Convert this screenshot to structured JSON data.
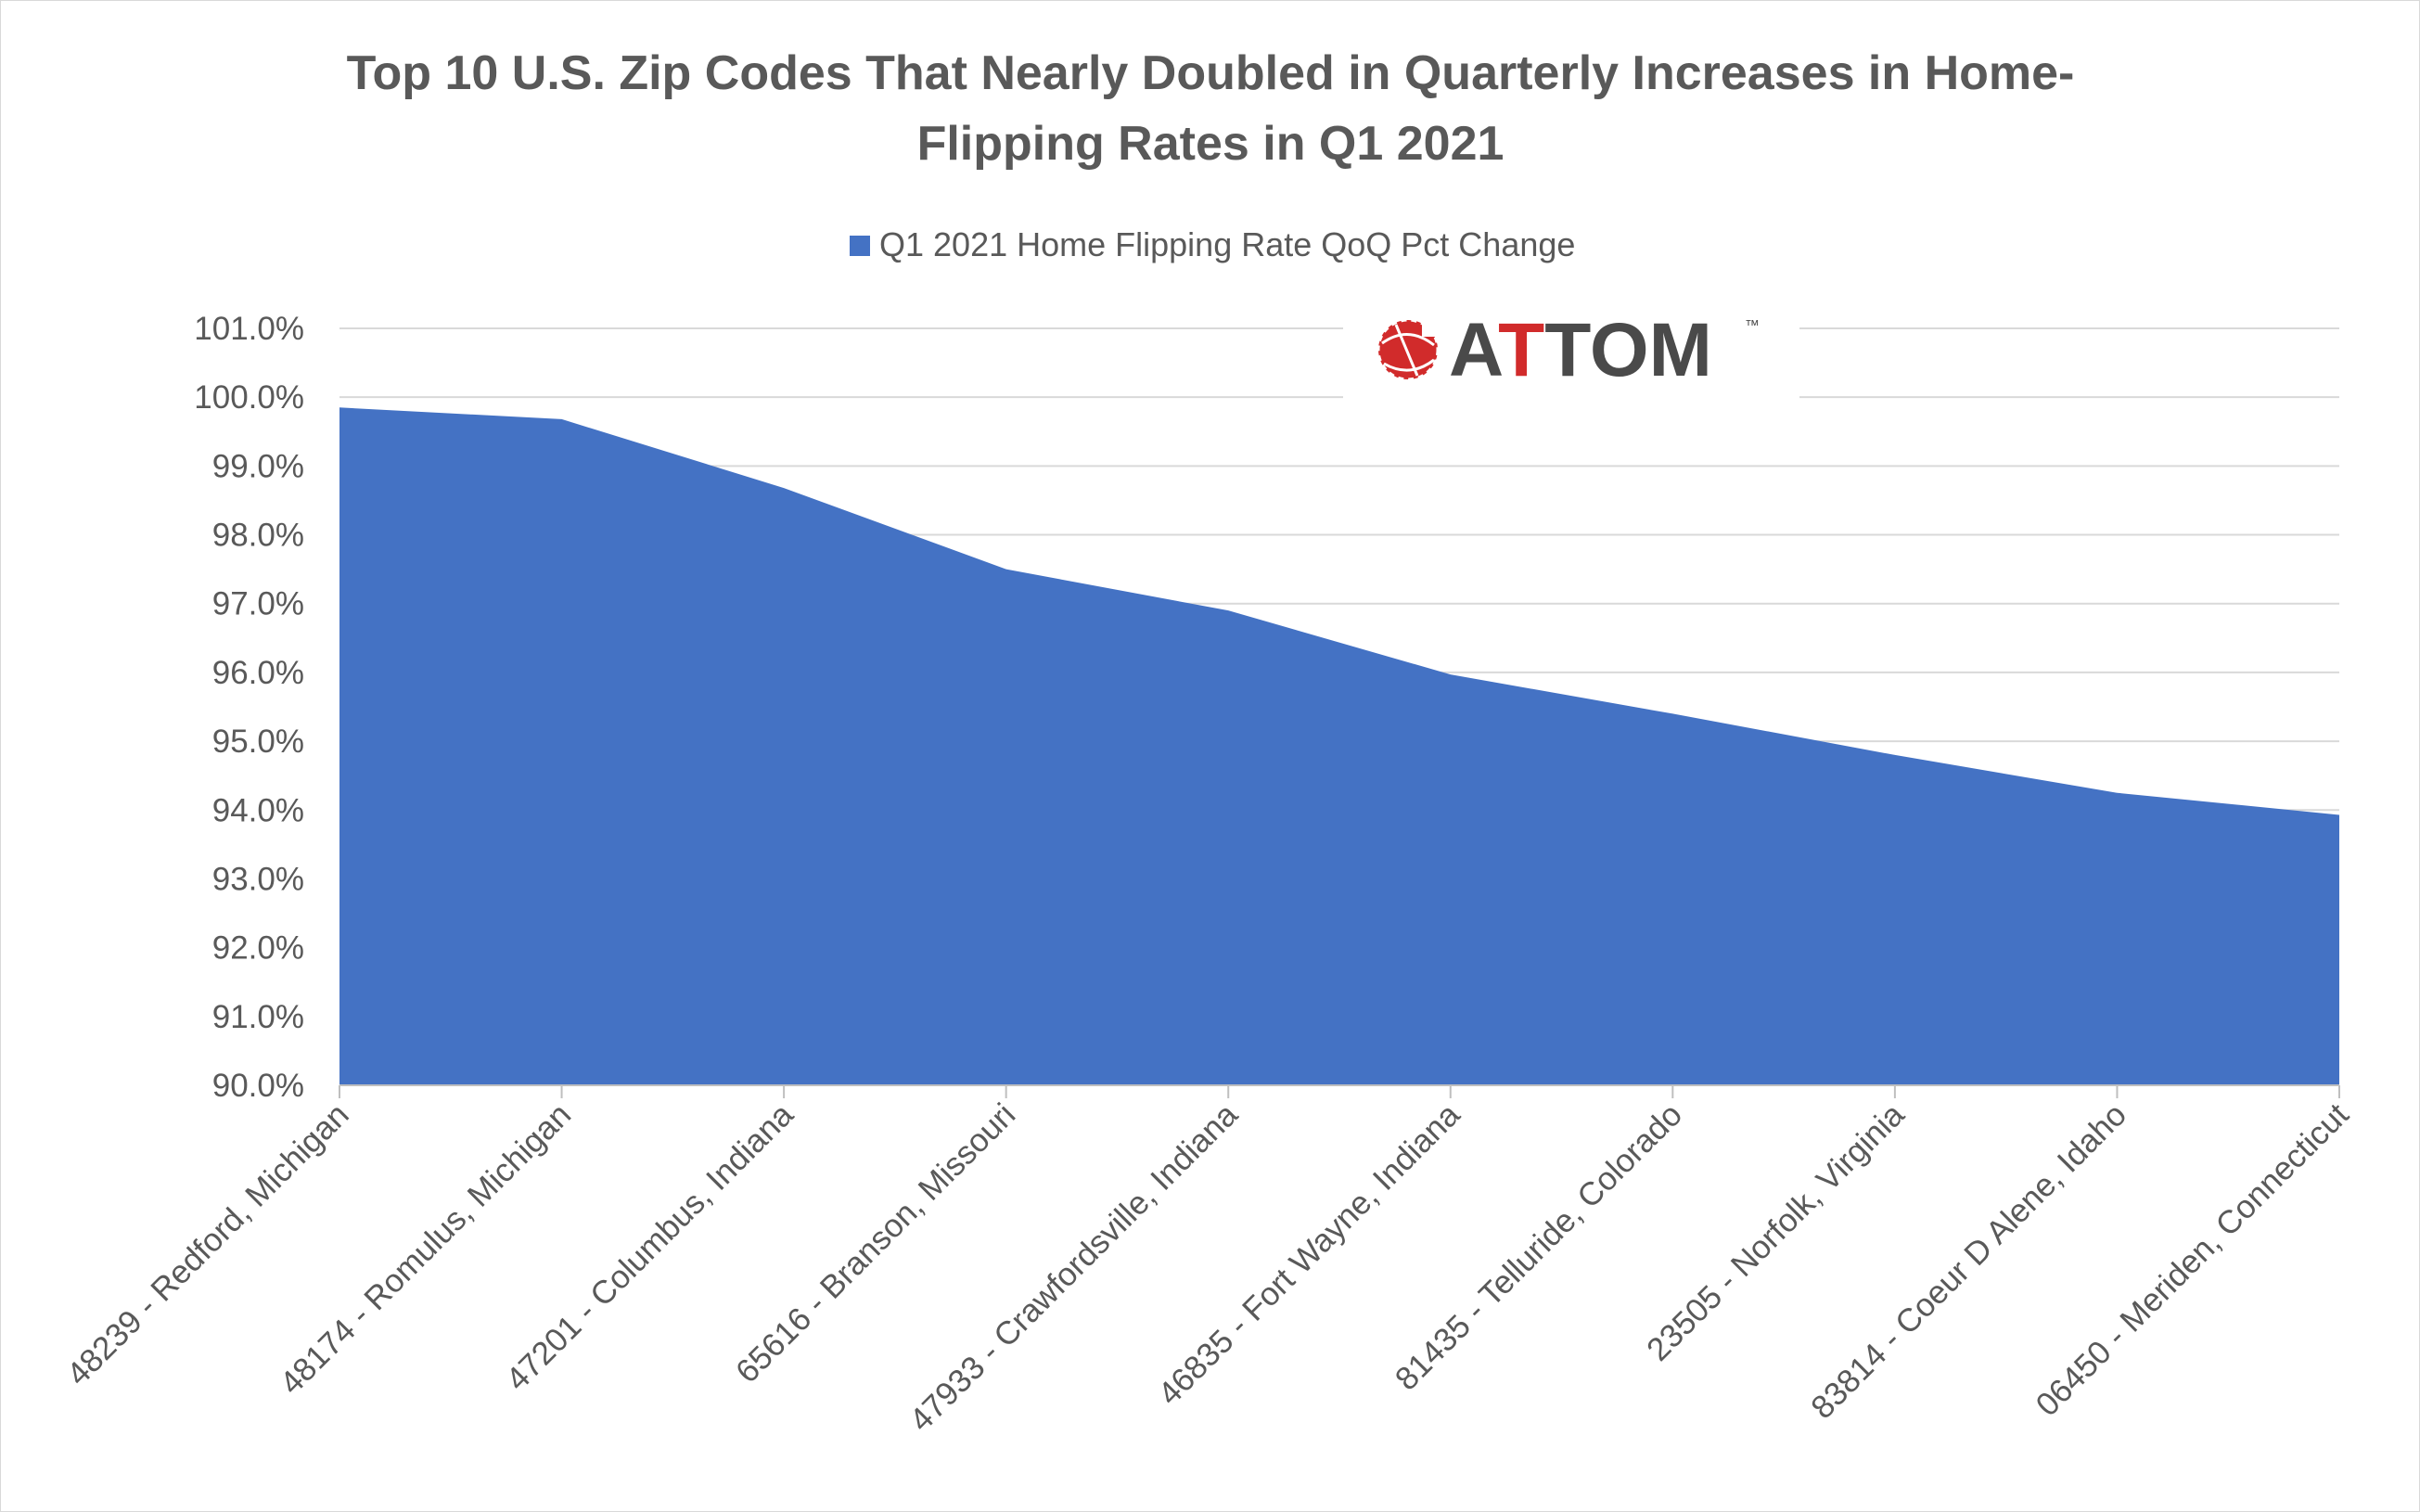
{
  "chart_data": {
    "type": "area",
    "title_lines": [
      "Top 10 U.S. Zip Codes That Nearly Doubled in Quarterly Increases in Home-",
      "Flipping Rates in Q1 2021"
    ],
    "legend": {
      "position": "top",
      "entries": [
        "Q1 2021 Home Flipping Rate QoQ Pct Change"
      ]
    },
    "categories": [
      "48239 - Redford, Michigan",
      "48174 - Romulus, Michigan",
      "47201 - Columbus, Indiana",
      "65616 - Branson, Missouri",
      "47933 - Crawfordsville, Indiana",
      "46835 - Fort Wayne, Indiana",
      "81435 - Telluride, Colorado",
      "23505 - Norfolk, Virginia",
      "83814 - Coeur D Alene, Idaho",
      "06450 - Meriden, Connecticut"
    ],
    "series": [
      {
        "name": "Q1 2021 Home Flipping Rate QoQ Pct Change",
        "values": [
          99.85,
          99.68,
          98.68,
          97.5,
          96.9,
          95.97,
          95.4,
          94.8,
          94.25,
          93.93
        ],
        "color": "#4472c4"
      }
    ],
    "ylim": [
      90,
      101
    ],
    "y_ticks": [
      90,
      91,
      92,
      93,
      94,
      95,
      96,
      97,
      98,
      99,
      100,
      101
    ],
    "y_tick_labels": [
      "90.0%",
      "91.0%",
      "92.0%",
      "93.0%",
      "94.0%",
      "95.0%",
      "96.0%",
      "97.0%",
      "98.0%",
      "99.0%",
      "100.0%",
      "101.0%"
    ],
    "grid": true,
    "gridline_color": "#d9d9d9",
    "axis_color": "#bfbfbf",
    "text_color": "#595959"
  },
  "logo": {
    "text_before": "A",
    "text_accent": "T",
    "text_after": "TOM",
    "trademark": "™",
    "accent_color": "#d12b2b",
    "text_color": "#4a4a4a",
    "icon": "attom-globe-icon"
  }
}
